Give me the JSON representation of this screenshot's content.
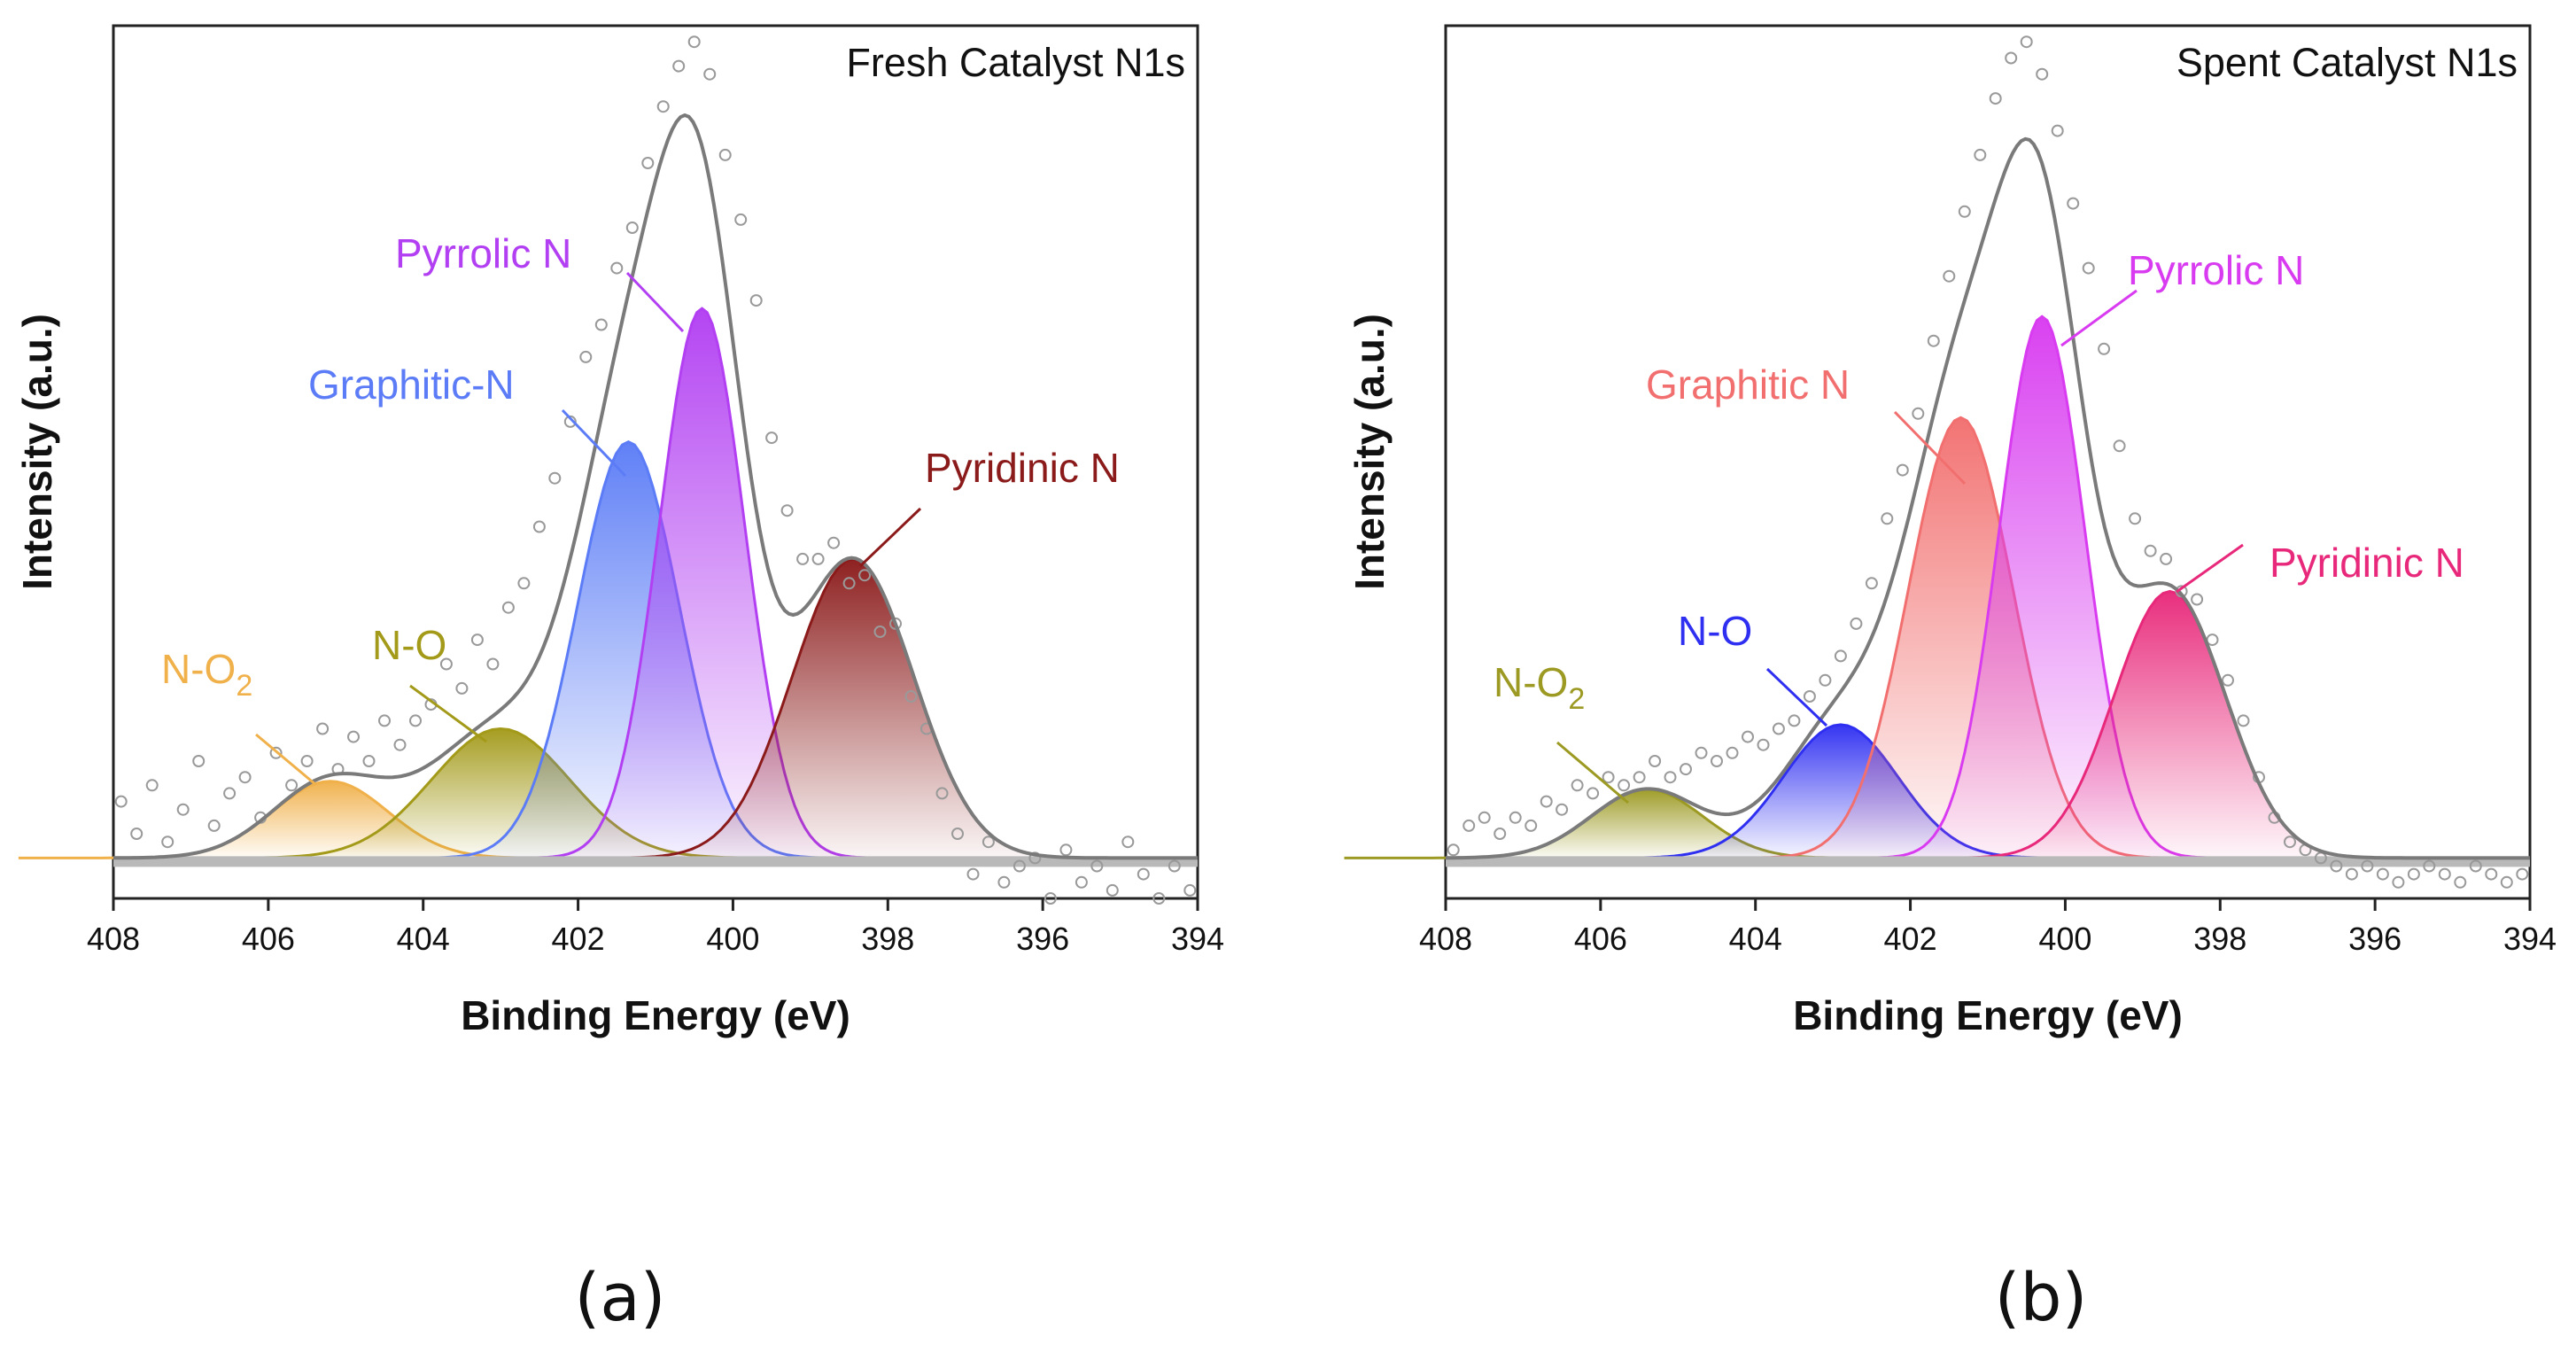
{
  "chart_data": [
    {
      "type": "line",
      "panel_label": "(a)",
      "title": "Fresh Catalyst N1s",
      "xlabel": "Binding Energy (eV)",
      "ylabel": "Intensity (a.u.)",
      "xlim": [
        408,
        394
      ],
      "ylim": [
        -0.05,
        1.03
      ],
      "xticks": [
        "408",
        "406",
        "404",
        "402",
        "400",
        "398",
        "396",
        "394"
      ],
      "baseline_color": "#b9b9b9",
      "envelope_color": "#7a7a7a",
      "series": [
        {
          "name": "N-O",
          "label": "N-O",
          "label_sub": "2",
          "center": 405.2,
          "amplitude": 0.095,
          "fwhm": 1.75,
          "color": "#f0b04a"
        },
        {
          "name": "N-O",
          "label": "N-O",
          "label_sub": "",
          "center": 403.0,
          "amplitude": 0.16,
          "fwhm": 2.1,
          "color": "#a39a1a"
        },
        {
          "name": "Graphitic-N",
          "label": "Graphitic-N",
          "label_sub": "",
          "center": 401.35,
          "amplitude": 0.515,
          "fwhm": 1.55,
          "color": "#5b7cf6"
        },
        {
          "name": "Pyrrolic N",
          "label": "Pyrrolic N",
          "label_sub": "",
          "center": 400.4,
          "amplitude": 0.68,
          "fwhm": 1.3,
          "color": "#b23ff2"
        },
        {
          "name": "Pyridinic N",
          "label": "Pyridinic N",
          "label_sub": "",
          "center": 398.45,
          "amplitude": 0.37,
          "fwhm": 1.85,
          "color": "#8b1a1a"
        }
      ],
      "scatter": {
        "x": [
          407.9,
          407.7,
          407.5,
          407.3,
          407.1,
          406.9,
          406.7,
          406.5,
          406.3,
          406.1,
          405.9,
          405.7,
          405.5,
          405.3,
          405.1,
          404.9,
          404.7,
          404.5,
          404.3,
          404.1,
          403.9,
          403.7,
          403.5,
          403.3,
          403.1,
          402.9,
          402.7,
          402.5,
          402.3,
          402.1,
          401.9,
          401.7,
          401.5,
          401.3,
          401.1,
          400.9,
          400.7,
          400.5,
          400.3,
          400.1,
          399.9,
          399.7,
          399.5,
          399.3,
          399.1,
          398.9,
          398.7,
          398.5,
          398.3,
          398.1,
          397.9,
          397.7,
          397.5,
          397.3,
          397.1,
          396.9,
          396.7,
          396.5,
          396.3,
          396.1,
          395.9,
          395.7,
          395.5,
          395.3,
          395.1,
          394.9,
          394.7,
          394.5,
          394.3,
          394.1
        ],
        "y": [
          0.07,
          0.03,
          0.09,
          0.02,
          0.06,
          0.12,
          0.04,
          0.08,
          0.1,
          0.05,
          0.13,
          0.09,
          0.12,
          0.16,
          0.11,
          0.15,
          0.12,
          0.17,
          0.14,
          0.17,
          0.19,
          0.24,
          0.21,
          0.27,
          0.24,
          0.31,
          0.34,
          0.41,
          0.47,
          0.54,
          0.62,
          0.66,
          0.73,
          0.78,
          0.86,
          0.93,
          0.98,
          1.01,
          0.97,
          0.87,
          0.79,
          0.69,
          0.52,
          0.43,
          0.37,
          0.37,
          0.39,
          0.34,
          0.35,
          0.28,
          0.29,
          0.2,
          0.16,
          0.08,
          0.03,
          -0.02,
          0.02,
          -0.03,
          -0.01,
          0.0,
          -0.05,
          0.01,
          -0.03,
          -0.01,
          -0.04,
          0.02,
          -0.02,
          -0.05,
          -0.01,
          -0.04
        ]
      }
    },
    {
      "type": "line",
      "panel_label": "(b)",
      "title": "Spent Catalyst N1s",
      "xlabel": "Binding Energy (eV)",
      "ylabel": "Intensity (a.u.)",
      "xlim": [
        408,
        394
      ],
      "ylim": [
        -0.05,
        1.03
      ],
      "xticks": [
        "408",
        "406",
        "404",
        "402",
        "400",
        "398",
        "396",
        "394"
      ],
      "baseline_color": "#b9b9b9",
      "envelope_color": "#7a7a7a",
      "series": [
        {
          "name": "N-O",
          "label": "N-O",
          "label_sub": "2",
          "center": 405.4,
          "amplitude": 0.085,
          "fwhm": 1.7,
          "color": "#9c9a23"
        },
        {
          "name": "N-O",
          "label": "N-O",
          "label_sub": "",
          "center": 402.9,
          "amplitude": 0.165,
          "fwhm": 1.75,
          "color": "#2f2ff2"
        },
        {
          "name": "Graphitic N",
          "label": "Graphitic N",
          "label_sub": "",
          "center": 401.35,
          "amplitude": 0.545,
          "fwhm": 1.6,
          "color": "#f26f6f"
        },
        {
          "name": "Pyrrolic N",
          "label": "Pyrrolic N",
          "label_sub": "",
          "center": 400.3,
          "amplitude": 0.67,
          "fwhm": 1.3,
          "color": "#d83bf0"
        },
        {
          "name": "Pyridinic N",
          "label": "Pyridinic N",
          "label_sub": "",
          "center": 398.65,
          "amplitude": 0.33,
          "fwhm": 1.7,
          "color": "#e8287a"
        }
      ],
      "scatter": {
        "x": [
          407.9,
          407.7,
          407.5,
          407.3,
          407.1,
          406.9,
          406.7,
          406.5,
          406.3,
          406.1,
          405.9,
          405.7,
          405.5,
          405.3,
          405.1,
          404.9,
          404.7,
          404.5,
          404.3,
          404.1,
          403.9,
          403.7,
          403.5,
          403.3,
          403.1,
          402.9,
          402.7,
          402.5,
          402.3,
          402.1,
          401.9,
          401.7,
          401.5,
          401.3,
          401.1,
          400.9,
          400.7,
          400.5,
          400.3,
          400.1,
          399.9,
          399.7,
          399.5,
          399.3,
          399.1,
          398.9,
          398.7,
          398.5,
          398.3,
          398.1,
          397.9,
          397.7,
          397.5,
          397.3,
          397.1,
          396.9,
          396.7,
          396.5,
          396.3,
          396.1,
          395.9,
          395.7,
          395.5,
          395.3,
          395.1,
          394.9,
          394.7,
          394.5,
          394.3,
          394.1
        ],
        "y": [
          0.01,
          0.04,
          0.05,
          0.03,
          0.05,
          0.04,
          0.07,
          0.06,
          0.09,
          0.08,
          0.1,
          0.09,
          0.1,
          0.12,
          0.1,
          0.11,
          0.13,
          0.12,
          0.13,
          0.15,
          0.14,
          0.16,
          0.17,
          0.2,
          0.22,
          0.25,
          0.29,
          0.34,
          0.42,
          0.48,
          0.55,
          0.64,
          0.72,
          0.8,
          0.87,
          0.94,
          0.99,
          1.01,
          0.97,
          0.9,
          0.81,
          0.73,
          0.63,
          0.51,
          0.42,
          0.38,
          0.37,
          0.33,
          0.32,
          0.27,
          0.22,
          0.17,
          0.1,
          0.05,
          0.02,
          0.01,
          0.0,
          -0.01,
          -0.02,
          -0.01,
          -0.02,
          -0.03,
          -0.02,
          -0.01,
          -0.02,
          -0.03,
          -0.01,
          -0.02,
          -0.03,
          -0.02
        ]
      }
    }
  ]
}
